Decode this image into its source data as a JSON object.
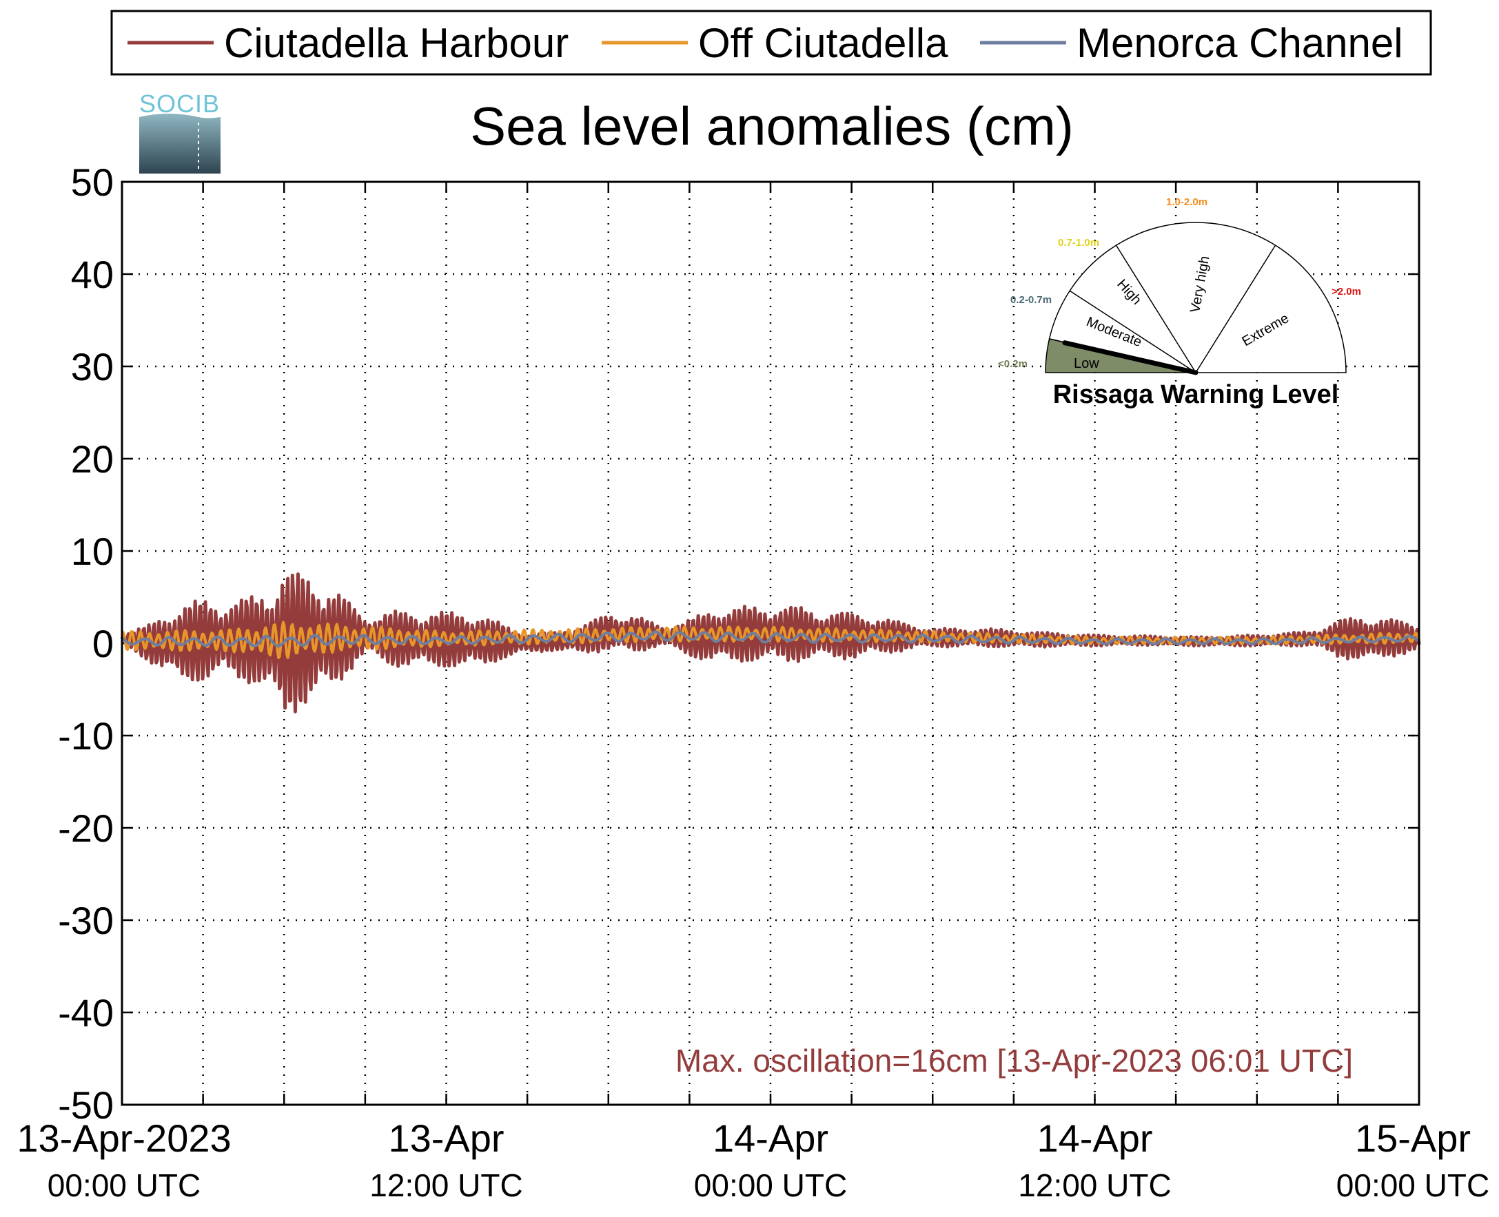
{
  "colors": {
    "harbour": "#943c3c",
    "off": "#e8962a",
    "channel": "#6e7ea0",
    "low_fill": "#7e8c68",
    "range_low": "#6e7d54",
    "range_moderate": "#4a6a74",
    "range_high": "#e2d21c",
    "range_veryhigh": "#f08a18",
    "range_extreme": "#e01818"
  },
  "logo": {
    "text": "SOCIB"
  },
  "chart_data": {
    "type": "line",
    "title": "Sea level anomalies (cm)",
    "xlabel": "",
    "ylabel": "",
    "ylim": [
      -50,
      50
    ],
    "yticks": [
      "50",
      "40",
      "30",
      "20",
      "10",
      "0",
      "-10",
      "-20",
      "-30",
      "-40",
      "-50"
    ],
    "xlim_hours": [
      0,
      48
    ],
    "xticks": [
      {
        "main": "13-Apr-2023",
        "sub": "00:00 UTC"
      },
      {
        "main": "13-Apr",
        "sub": "12:00 UTC"
      },
      {
        "main": "14-Apr",
        "sub": "00:00 UTC"
      },
      {
        "main": "14-Apr",
        "sub": "12:00 UTC"
      },
      {
        "main": "15-Apr",
        "sub": "00:00 UTC"
      }
    ],
    "grid": true,
    "legend_position": "top",
    "series": [
      {
        "name": "Ciutadella Harbour",
        "envelope_hours": [
          0,
          1,
          2,
          3,
          4,
          5,
          5.5,
          6,
          6.5,
          7,
          7.5,
          8,
          9,
          10,
          11,
          12,
          13,
          14,
          15,
          16,
          17,
          18,
          19,
          20,
          21,
          22,
          23,
          24,
          25,
          26,
          27,
          28,
          29,
          30,
          32,
          34,
          36,
          38,
          40,
          42,
          44,
          45,
          46,
          47,
          48
        ],
        "envelope_max_cm": [
          0.5,
          2,
          4,
          4.5,
          4,
          5,
          6,
          8,
          7.5,
          7,
          6,
          5,
          2,
          3,
          3,
          3,
          3,
          2,
          1,
          1,
          1.5,
          2,
          2,
          1,
          2,
          3,
          3,
          3,
          3,
          2.5,
          2.5,
          2,
          1.5,
          1,
          1,
          0.8,
          0.6,
          0.5,
          0.5,
          0.6,
          0.8,
          2,
          2.5,
          2,
          1.5
        ],
        "mean_cm": [
          0.5,
          0,
          0,
          0.3,
          0.5,
          0.3,
          0.2,
          0,
          0.2,
          0.4,
          0.5,
          0.6,
          0.8,
          0.5,
          0.4,
          0.4,
          0.3,
          0.2,
          0,
          0.2,
          0.4,
          1.2,
          1,
          0.8,
          0.6,
          0.8,
          1,
          1,
          1,
          0.9,
          0.8,
          0.8,
          0.7,
          0.6,
          0.6,
          0.4,
          0.3,
          0.3,
          0.2,
          0.3,
          0.5,
          0.5,
          0.5,
          0.6,
          0.5
        ]
      },
      {
        "name": "Off Ciutadella",
        "envelope_hours": [
          0,
          4,
          6,
          8,
          12,
          20,
          24,
          30,
          36,
          42,
          48
        ],
        "envelope_max_cm": [
          1,
          1.2,
          2,
          1.5,
          0.8,
          0.8,
          0.8,
          0.6,
          0.4,
          0.4,
          0.6
        ],
        "mean_cm": [
          0.3,
          0.3,
          0.3,
          0.6,
          0.5,
          1.0,
          1.0,
          0.7,
          0.3,
          0.3,
          0.6
        ]
      },
      {
        "name": "Menorca Channel",
        "envelope_hours": [
          0,
          4,
          6,
          8,
          12,
          20,
          24,
          30,
          36,
          42,
          48
        ],
        "envelope_max_cm": [
          0.4,
          0.5,
          0.6,
          0.5,
          0.4,
          0.5,
          0.5,
          0.4,
          0.3,
          0.3,
          0.3
        ],
        "mean_cm": [
          0.2,
          0.2,
          0.2,
          0.4,
          0.3,
          0.8,
          0.6,
          0.5,
          0.2,
          0.2,
          0.5
        ]
      }
    ],
    "annotation": "Max. oscillation=16cm [13-Apr-2023 06:01 UTC]",
    "legend": [
      "Ciutadella Harbour",
      "Off Ciutadella",
      "Menorca Channel"
    ]
  },
  "gauge": {
    "title": "Rissaga Warning Level",
    "level_value": 0.16,
    "segments": [
      {
        "label": "Low",
        "range": "<0.2m"
      },
      {
        "label": "Moderate",
        "range": "0.2-0.7m"
      },
      {
        "label": "High",
        "range": "0.7-1.0m"
      },
      {
        "label": "Very high",
        "range": "1.0-2.0m"
      },
      {
        "label": "Extreme",
        "range": ">2.0m"
      }
    ]
  }
}
